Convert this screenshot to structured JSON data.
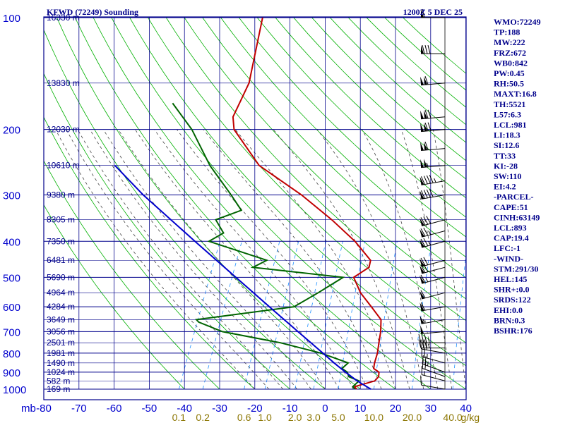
{
  "header": {
    "station": "KFWD (72249) Sounding",
    "time": "1200Z  5 DEC 25"
  },
  "indices": [
    "WMO:72249",
    "TP:188",
    "MW:222",
    "FRZ:672",
    "WB0:842",
    "PW:0.45",
    "RH:50.5",
    "MAXT:16.8",
    "TH:5521",
    "L57:6.3",
    "LCL:981",
    "LI:18.3",
    "SI:12.6",
    "TT:33",
    "KI:-28",
    "SW:110",
    "EI:4.2",
    "-PARCEL-",
    "CAPE:51",
    "CINH:63149",
    "LCL:893",
    "CAP:19.4",
    "LFC:-1",
    "-WIND-",
    "STM:291/30",
    "HEL:145",
    "SHR+:0.0",
    "SRDS:122",
    "EHI:0.0",
    "BRN:0.3",
    "BSHR:176"
  ],
  "colors": {
    "grid": "#00008b",
    "dry_adiabat": "#00b000",
    "moist_adiabat": "#444444",
    "mixing_ratio": "#1e90ff",
    "temperature": "#c00000",
    "dewpoint": "#006400",
    "parcel": "#0000cd",
    "wind": "#000000"
  },
  "chart_data": {
    "type": "line",
    "title": "KFWD (72249) Sounding",
    "xlabel": "",
    "ylabel": "mb",
    "y_scale": "log",
    "xlim": [
      -80,
      40
    ],
    "ylim": [
      1000,
      100
    ],
    "y_ticks": [
      "100",
      "200",
      "300",
      "400",
      "500",
      "600",
      "700",
      "800",
      "900",
      "1000"
    ],
    "x_ticks": [
      "-80",
      "-70",
      "-60",
      "-50",
      "-40",
      "-30",
      "-20",
      "-10",
      "0",
      "10",
      "20",
      "30",
      "40"
    ],
    "height_labels": [
      {
        "p": 100,
        "label": "16330 m"
      },
      {
        "p": 150,
        "label": "13830 m"
      },
      {
        "p": 200,
        "label": "12030 m"
      },
      {
        "p": 250,
        "label": "10610 m"
      },
      {
        "p": 300,
        "label": "9380 m"
      },
      {
        "p": 350,
        "label": "8305 m"
      },
      {
        "p": 400,
        "label": "7350 m"
      },
      {
        "p": 450,
        "label": "6481 m"
      },
      {
        "p": 500,
        "label": "5690 m"
      },
      {
        "p": 550,
        "label": "4964 m"
      },
      {
        "p": 600,
        "label": "4284 m"
      },
      {
        "p": 650,
        "label": "3649 m"
      },
      {
        "p": 700,
        "label": "3056 m"
      },
      {
        "p": 750,
        "label": "2501 m"
      },
      {
        "p": 800,
        "label": "1981 m"
      },
      {
        "p": 850,
        "label": "1490 m"
      },
      {
        "p": 900,
        "label": "1024 m"
      },
      {
        "p": 950,
        "label": "582 m"
      },
      {
        "p": 1000,
        "label": "169 m"
      }
    ],
    "mixing_ratio_labels": [
      "0.1",
      "0.2",
      "0.6",
      "1.0",
      "2.0",
      "3.0",
      "5.0",
      "10.0",
      "20.0",
      "40.0"
    ],
    "mixing_ratio_unit": "g/kg",
    "mixing_ratio_values": [
      0.1,
      0.2,
      0.6,
      1.0,
      2.0,
      3.0,
      5.0,
      10.0,
      20.0,
      40.0
    ],
    "series": [
      {
        "id": "temperature",
        "p": [
          1000,
          985,
          950,
          925,
          900,
          880,
          850,
          800,
          750,
          700,
          650,
          600,
          550,
          500,
          470,
          450,
          400,
          350,
          300,
          250,
          200,
          185,
          150,
          100
        ],
        "t": [
          9.0,
          8.0,
          13.0,
          13.5,
          13.0,
          11.0,
          10.5,
          10.0,
          9.0,
          8.0,
          6.5,
          2.0,
          -3.0,
          -7.0,
          -4.0,
          -4.5,
          -11.5,
          -21.0,
          -33.0,
          -49.0,
          -61.0,
          -63.0,
          -63.0,
          -68.0
        ]
      },
      {
        "id": "dewpoint",
        "p": [
          1000,
          985,
          950,
          925,
          900,
          880,
          850,
          800,
          750,
          700,
          660,
          650,
          600,
          550,
          500,
          470,
          450,
          400,
          380,
          350,
          330,
          300,
          250,
          200,
          170
        ],
        "t": [
          8.5,
          7.5,
          8.5,
          5.0,
          4.0,
          2.0,
          3.0,
          -6.0,
          -19.0,
          -37.0,
          -45.0,
          -46.0,
          -20.0,
          -15.0,
          -10.0,
          -37.0,
          -34.0,
          -53.0,
          -50.0,
          -54.0,
          -48.0,
          -53.0,
          -63.0,
          -73.0,
          -82.0
        ]
      },
      {
        "id": "parcel",
        "p": [
          1000,
          950,
          900,
          850,
          800,
          700,
          600,
          500,
          400,
          300,
          250
        ],
        "t": [
          13.0,
          8.0,
          3.5,
          -1.0,
          -5.5,
          -15.5,
          -27.0,
          -40.5,
          -57.0,
          -78.0,
          -90.0
        ]
      }
    ],
    "wind_barbs": [
      {
        "p": 1000,
        "dir": 280,
        "spd": 10
      },
      {
        "p": 950,
        "dir": 285,
        "spd": 15
      },
      {
        "p": 925,
        "dir": 290,
        "spd": 20
      },
      {
        "p": 900,
        "dir": 290,
        "spd": 25
      },
      {
        "p": 850,
        "dir": 285,
        "spd": 25
      },
      {
        "p": 800,
        "dir": 280,
        "spd": 30
      },
      {
        "p": 775,
        "dir": 270,
        "spd": 35
      },
      {
        "p": 750,
        "dir": 270,
        "spd": 35
      },
      {
        "p": 700,
        "dir": 265,
        "spd": 50
      },
      {
        "p": 650,
        "dir": 260,
        "spd": 55
      },
      {
        "p": 600,
        "dir": 260,
        "spd": 60
      },
      {
        "p": 550,
        "dir": 255,
        "spd": 60
      },
      {
        "p": 500,
        "dir": 255,
        "spd": 65
      },
      {
        "p": 470,
        "dir": 255,
        "spd": 70
      },
      {
        "p": 450,
        "dir": 255,
        "spd": 70
      },
      {
        "p": 400,
        "dir": 255,
        "spd": 75
      },
      {
        "p": 375,
        "dir": 255,
        "spd": 75
      },
      {
        "p": 350,
        "dir": 255,
        "spd": 80
      },
      {
        "p": 300,
        "dir": 260,
        "spd": 90
      },
      {
        "p": 275,
        "dir": 260,
        "spd": 95
      },
      {
        "p": 250,
        "dir": 265,
        "spd": 105
      },
      {
        "p": 225,
        "dir": 265,
        "spd": 110
      },
      {
        "p": 200,
        "dir": 265,
        "spd": 120
      },
      {
        "p": 185,
        "dir": 265,
        "spd": 120
      },
      {
        "p": 150,
        "dir": 265,
        "spd": 110
      },
      {
        "p": 125,
        "dir": 270,
        "spd": 80
      },
      {
        "p": 100,
        "dir": 270,
        "spd": 60
      }
    ]
  }
}
